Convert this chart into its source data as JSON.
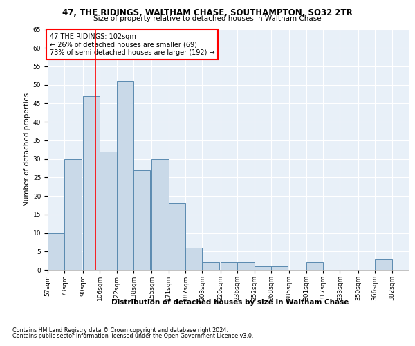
{
  "title1": "47, THE RIDINGS, WALTHAM CHASE, SOUTHAMPTON, SO32 2TR",
  "title2": "Size of property relative to detached houses in Waltham Chase",
  "xlabel": "Distribution of detached houses by size in Waltham Chase",
  "ylabel": "Number of detached properties",
  "footnote1": "Contains HM Land Registry data © Crown copyright and database right 2024.",
  "footnote2": "Contains public sector information licensed under the Open Government Licence v3.0.",
  "annotation_line1": "47 THE RIDINGS: 102sqm",
  "annotation_line2": "← 26% of detached houses are smaller (69)",
  "annotation_line3": "73% of semi-detached houses are larger (192) →",
  "bar_color": "#c9d9e8",
  "bar_edge_color": "#5a8ab0",
  "red_line_x": 102,
  "categories": [
    "57sqm",
    "73sqm",
    "90sqm",
    "106sqm",
    "122sqm",
    "138sqm",
    "155sqm",
    "171sqm",
    "187sqm",
    "203sqm",
    "220sqm",
    "236sqm",
    "252sqm",
    "268sqm",
    "285sqm",
    "301sqm",
    "317sqm",
    "333sqm",
    "350sqm",
    "366sqm",
    "382sqm"
  ],
  "bin_starts": [
    57,
    73,
    90,
    106,
    122,
    138,
    155,
    171,
    187,
    203,
    220,
    236,
    252,
    268,
    285,
    301,
    317,
    333,
    350,
    366,
    382
  ],
  "bin_width": 16,
  "values": [
    10,
    30,
    47,
    32,
    51,
    27,
    30,
    18,
    6,
    2,
    2,
    2,
    1,
    1,
    0,
    2,
    0,
    0,
    0,
    3,
    0
  ],
  "ylim": [
    0,
    65
  ],
  "yticks": [
    0,
    5,
    10,
    15,
    20,
    25,
    30,
    35,
    40,
    45,
    50,
    55,
    60,
    65
  ],
  "background_color": "#e8f0f8",
  "title1_fontsize": 8.5,
  "title2_fontsize": 7.5,
  "ylabel_fontsize": 7.5,
  "xlabel_fontsize": 7.5,
  "tick_fontsize": 6.5,
  "annotation_fontsize": 7.0,
  "footnote_fontsize": 5.8
}
